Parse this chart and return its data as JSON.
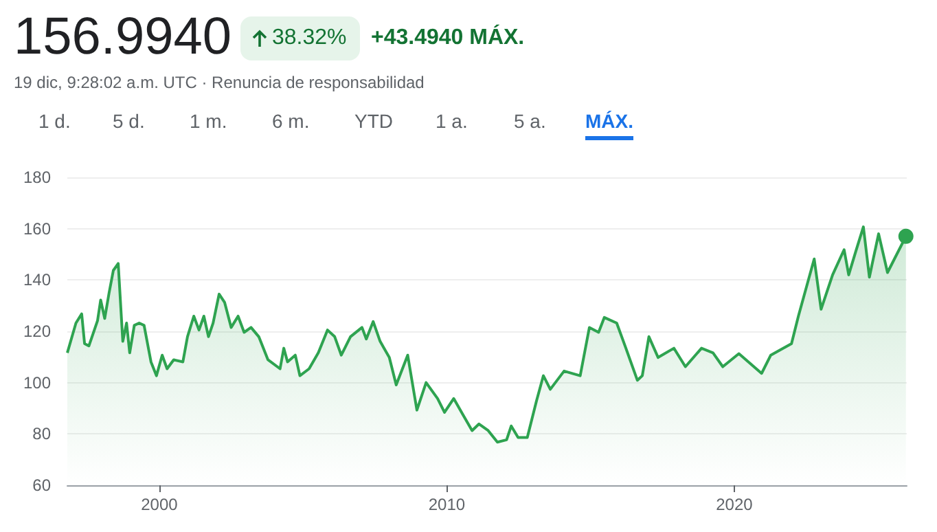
{
  "chart_data": {
    "type": "area",
    "title": "156.9940",
    "subtitle": "19 dic, 9:28:02 a.m. UTC · Renuncia de responsabilidad",
    "annotations": [
      "38.32%",
      "+43.4940 MÁX.",
      "1 d.",
      "5 d.",
      "1 m.",
      "6 m.",
      "YTD",
      "1 a.",
      "5 a.",
      "MÁX."
    ],
    "x": [
      1996.8,
      1997.1,
      1997.3,
      1997.4,
      1997.55,
      1997.85,
      1997.96,
      1998.1,
      1998.25,
      1998.4,
      1998.57,
      1998.73,
      1998.86,
      1998.97,
      1999.13,
      1999.3,
      1999.47,
      1999.71,
      1999.9,
      2000.1,
      2000.27,
      2000.5,
      2000.82,
      2000.98,
      2001.2,
      2001.38,
      2001.55,
      2001.71,
      2001.87,
      2002.08,
      2002.27,
      2002.5,
      2002.74,
      2002.95,
      2003.19,
      2003.46,
      2003.78,
      2004.2,
      2004.33,
      2004.46,
      2004.73,
      2004.89,
      2005.21,
      2005.53,
      2005.85,
      2006.1,
      2006.33,
      2006.65,
      2007.05,
      2007.2,
      2007.44,
      2007.68,
      2008.0,
      2008.24,
      2008.64,
      2008.96,
      2009.28,
      2009.68,
      2009.92,
      2010.24,
      2010.56,
      2010.88,
      2011.12,
      2011.44,
      2011.76,
      2012.08,
      2012.24,
      2012.48,
      2012.8,
      2013.12,
      2013.36,
      2013.6,
      2014.08,
      2014.64,
      2014.96,
      2015.28,
      2015.48,
      2015.91,
      2016.23,
      2016.63,
      2016.8,
      2017.03,
      2017.35,
      2017.9,
      2018.3,
      2018.86,
      2019.26,
      2019.6,
      2020.16,
      2020.95,
      2021.27,
      2021.99,
      2022.23,
      2022.78,
      2023.02,
      2023.42,
      2023.82,
      2023.98,
      2024.22,
      2024.49,
      2024.7,
      2025.02,
      2025.33,
      2025.57,
      2025.97
    ],
    "series": [
      {
        "color": "#2ea350",
        "values": [
          111.6,
          123.2,
          126.8,
          115.2,
          114.3,
          124.1,
          132.2,
          125,
          134.8,
          143.7,
          146.4,
          116.1,
          123.2,
          111.6,
          122.3,
          123.2,
          122.3,
          108.1,
          102.7,
          110.7,
          105.4,
          108.9,
          108.1,
          117.9,
          125.9,
          120.5,
          125.9,
          117.9,
          123.2,
          134.5,
          131.3,
          121.5,
          125.9,
          119.6,
          121.5,
          117.9,
          108.9,
          105.4,
          113.4,
          108.1,
          110.7,
          102.7,
          105.4,
          111.6,
          120.5,
          117.9,
          110.7,
          117.9,
          121.5,
          117,
          123.8,
          116.1,
          109.8,
          99.1,
          110.7,
          89.3,
          100,
          93.8,
          88.4,
          93.8,
          87.5,
          81.3,
          83.9,
          81.3,
          76.8,
          77.7,
          83.1,
          78.6,
          78.6,
          92.9,
          102.7,
          97.4,
          104.5,
          102.7,
          121.5,
          119.6,
          125.4,
          123.2,
          113.4,
          100.9,
          102.7,
          117.9,
          109.8,
          113.4,
          106.2,
          113.4,
          111.6,
          106.2,
          111.3,
          103.6,
          110.7,
          115.2,
          125.9,
          148.2,
          128.6,
          142,
          151.8,
          142,
          150.9,
          160.7,
          141.1,
          158,
          142.9,
          148.2,
          157
        ]
      }
    ],
    "xlim": [
      1996.8,
      2026.0
    ],
    "xticks": [
      2000,
      2010,
      2020
    ],
    "ylim": [
      60,
      180
    ],
    "yticks": [
      60,
      80,
      100,
      120,
      140,
      160,
      180
    ],
    "grid": "y"
  }
}
